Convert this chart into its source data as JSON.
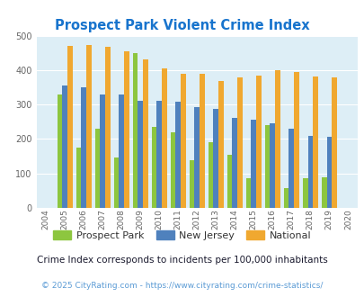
{
  "title": "Prospect Park Violent Crime Index",
  "years": [
    2004,
    2005,
    2006,
    2007,
    2008,
    2009,
    2010,
    2011,
    2012,
    2013,
    2014,
    2015,
    2016,
    2017,
    2018,
    2019,
    2020
  ],
  "prospect_park": [
    null,
    330,
    175,
    230,
    145,
    450,
    235,
    220,
    138,
    190,
    155,
    87,
    240,
    57,
    87,
    90,
    null
  ],
  "new_jersey": [
    null,
    355,
    350,
    330,
    330,
    312,
    310,
    308,
    292,
    288,
    262,
    256,
    246,
    231,
    210,
    207,
    null
  ],
  "national": [
    null,
    470,
    473,
    467,
    455,
    432,
    406,
    390,
    390,
    369,
    378,
    384,
    399,
    394,
    381,
    380,
    null
  ],
  "colors": {
    "prospect_park": "#8dc63f",
    "new_jersey": "#4f81bd",
    "national": "#f0a830"
  },
  "plot_bg": "#ddeef6",
  "ylim": [
    0,
    500
  ],
  "yticks": [
    0,
    100,
    200,
    300,
    400,
    500
  ],
  "legend_labels": [
    "Prospect Park",
    "New Jersey",
    "National"
  ],
  "footnote1": "Crime Index corresponds to incidents per 100,000 inhabitants",
  "footnote2": "© 2025 CityRating.com - https://www.cityrating.com/crime-statistics/",
  "title_color": "#1874cd",
  "footnote1_color": "#1a1a2e",
  "footnote2_color": "#5b9bd5",
  "bar_width": 0.27
}
